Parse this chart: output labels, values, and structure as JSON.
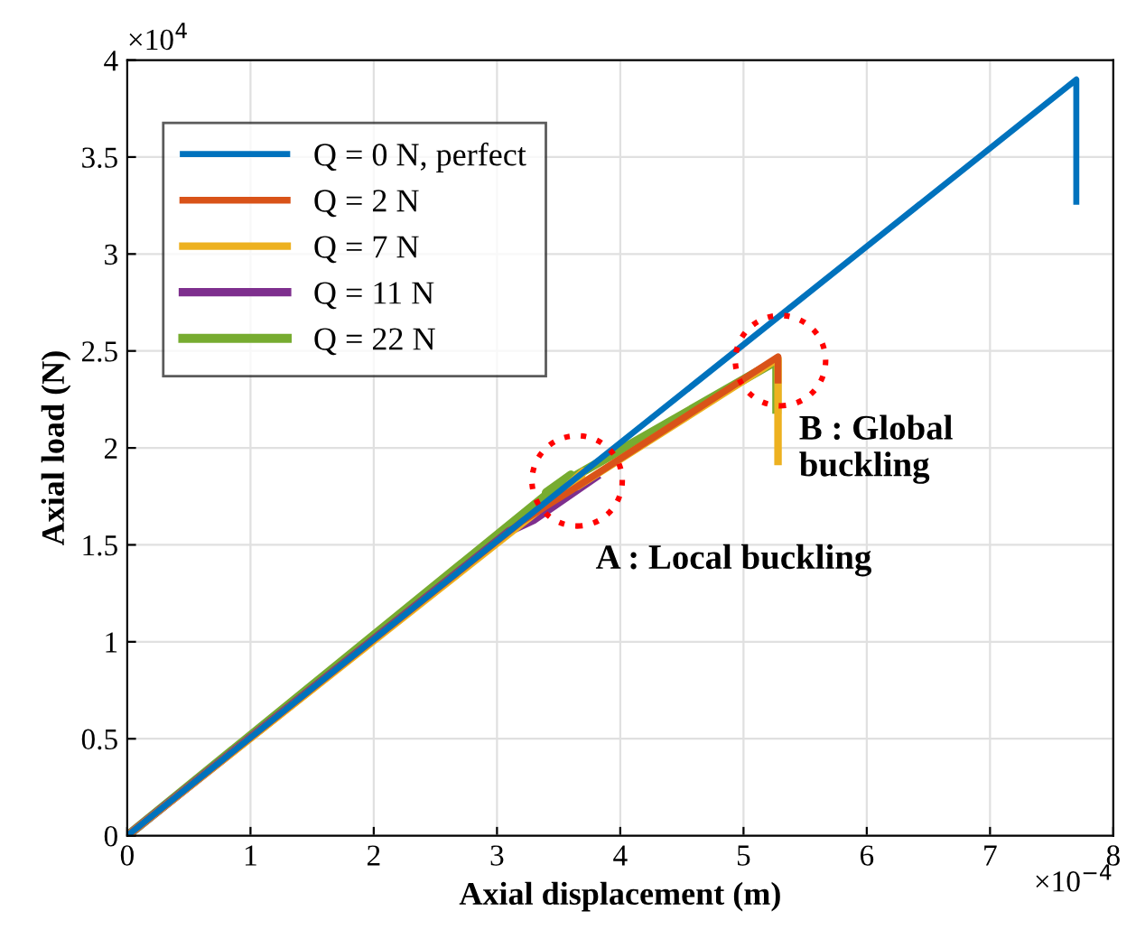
{
  "chart_data": {
    "type": "line",
    "xlabel": "Axial displacement (m)",
    "ylabel": "Axial load (N)",
    "xlim": [
      0,
      8
    ],
    "ylim": [
      0,
      4
    ],
    "xticks": [
      0,
      1,
      2,
      3,
      4,
      5,
      6,
      7,
      8
    ],
    "yticks": [
      0,
      0.5,
      1,
      1.5,
      2,
      2.5,
      3,
      3.5,
      4
    ],
    "grid": true,
    "legend": "top left",
    "line_style": "solid",
    "marker": "none",
    "series": [
      {
        "name": "Q = 0 N, perfect",
        "color": "#0072bd",
        "x": [
          0,
          7.7,
          7.7
        ],
        "values": [
          0,
          3.9,
          3.27
        ]
      },
      {
        "name": "Q = 2 N",
        "color": "#d95319",
        "x": [
          0,
          3.2,
          3.6,
          5.28,
          5.28
        ],
        "values": [
          0,
          1.62,
          1.78,
          2.47,
          2.35
        ]
      },
      {
        "name": "Q = 7 N",
        "color": "#edb120",
        "x": [
          0,
          3.5,
          3.7,
          3.65,
          5.28,
          5.28
        ],
        "values": [
          0,
          1.76,
          1.88,
          1.8,
          2.46,
          1.93
        ]
      },
      {
        "name": "Q = 11 N",
        "color": "#7e2f8e",
        "x": [
          0,
          3.1,
          3.3,
          3.8
        ],
        "values": [
          0,
          1.57,
          1.63,
          1.85
        ]
      },
      {
        "name": "Q = 22 N",
        "color": "#77ac30",
        "x": [
          0,
          3.6,
          3.4,
          5.27,
          5.27
        ],
        "values": [
          0,
          1.86,
          1.77,
          2.45,
          2.2
        ]
      }
    ],
    "annotations": [
      "×10$^{4}$",
      "×10$^{−4}$",
      {
        "text": "A : Local buckling",
        "x": 3.65,
        "y": 1.83
      },
      {
        "text": "B : Global\nbuckling",
        "x": 5.3,
        "y": 2.45
      }
    ]
  }
}
